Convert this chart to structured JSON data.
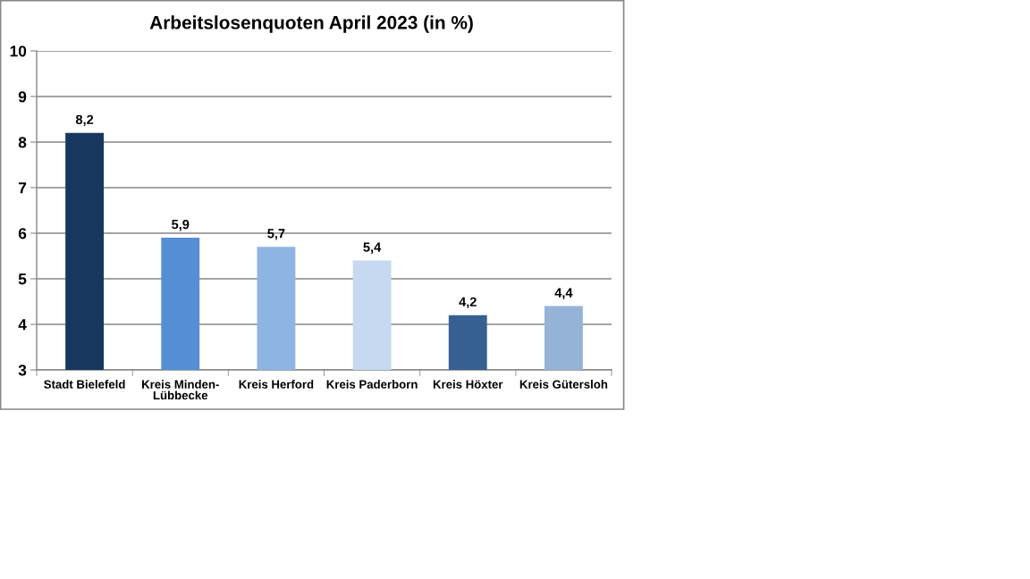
{
  "chart_data": {
    "type": "bar",
    "title": "Arbeitslosenquoten April 2023 (in %)",
    "categories": [
      "Stadt Bielefeld",
      "Kreis Minden-\nLübbecke",
      "Kreis Herford",
      "Kreis Paderborn",
      "Kreis Höxter",
      "Kreis Gütersloh"
    ],
    "values": [
      8.2,
      5.9,
      5.7,
      5.4,
      4.2,
      4.4
    ],
    "colors": [
      "#17375e",
      "#558ed5",
      "#8eb4e3",
      "#c6d9f1",
      "#376092",
      "#95b3d7"
    ],
    "value_labels": [
      "8,2",
      "5,9",
      "5,7",
      "5,4",
      "4,2",
      "4,4"
    ],
    "ylim": [
      3,
      10
    ],
    "yticks": [
      3,
      4,
      5,
      6,
      7,
      8,
      9,
      10
    ],
    "grid": "y",
    "legend": false
  }
}
